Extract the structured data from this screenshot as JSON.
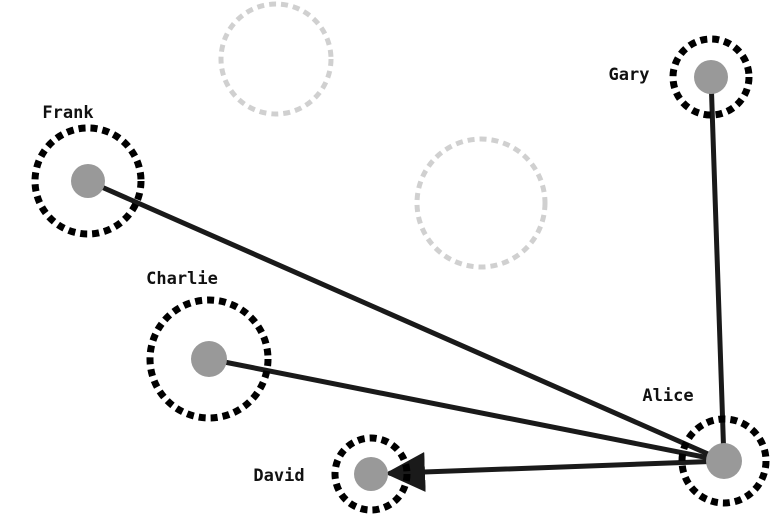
{
  "colors": {
    "background": "#ffffff",
    "node_fill": "#999999",
    "ring": "#000000",
    "ghost_ring": "#d0d0d0",
    "edge": "#1a1a1a"
  },
  "nodes": [
    {
      "id": "frank",
      "label": "Frank"
    },
    {
      "id": "charlie",
      "label": "Charlie"
    },
    {
      "id": "david",
      "label": "David"
    },
    {
      "id": "alice",
      "label": "Alice"
    },
    {
      "id": "gary",
      "label": "Gary"
    }
  ],
  "edges": [
    {
      "from": "frank",
      "to": "alice",
      "arrow": false
    },
    {
      "from": "charlie",
      "to": "alice",
      "arrow": false
    },
    {
      "from": "alice",
      "to": "david",
      "arrow": true
    },
    {
      "from": "gary",
      "to": "alice",
      "arrow": false
    }
  ],
  "ghost_rings": 2
}
